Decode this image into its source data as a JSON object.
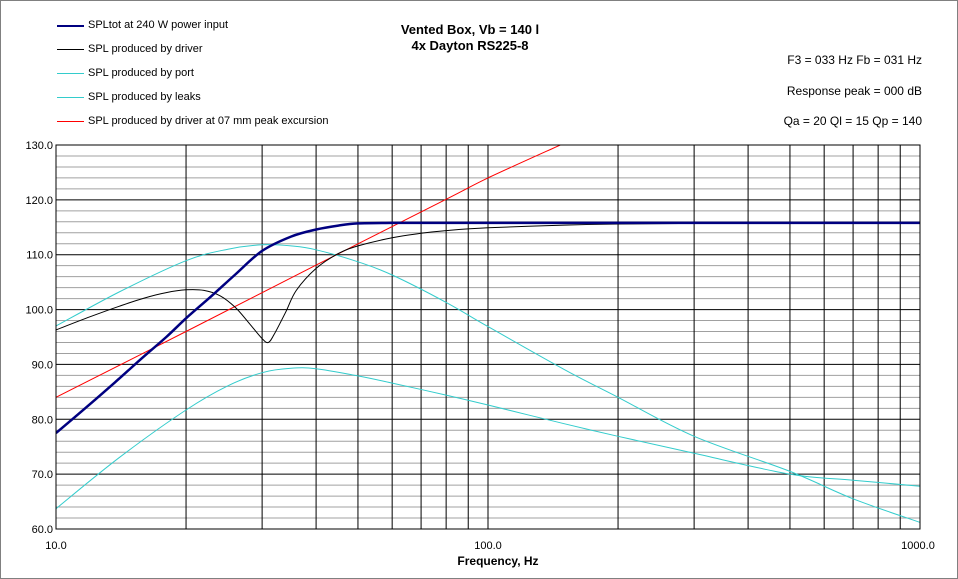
{
  "legend": [
    {
      "label": "SPLtot at 240 W power input",
      "color": "#000080",
      "width": 2.5
    },
    {
      "label": "SPL produced by driver",
      "color": "#000000",
      "width": 1
    },
    {
      "label": "SPL produced by port",
      "color": "#33cccc",
      "width": 1
    },
    {
      "label": "SPL produced by leaks",
      "color": "#33cccc",
      "width": 1
    },
    {
      "label": "SPL produced by driver at 07 mm peak excursion",
      "color": "#ff0000",
      "width": 1
    }
  ],
  "title": {
    "line1": "Vented Box, Vb = 140 l",
    "line2": "4x Dayton RS225-8"
  },
  "info": {
    "f3_fb": "F3 = 033  Hz   Fb = 031  Hz",
    "peak": "Response peak = 000  dB",
    "q": "Qa = 20   Ql = 15   Qp = 140"
  },
  "chart_data": {
    "type": "line",
    "xlabel": "Frequency, Hz",
    "ylabel": "",
    "xscale": "log",
    "xlim": [
      10,
      1000
    ],
    "ylim": [
      60,
      130
    ],
    "x_tick_labels": [
      "10.0",
      "100.0",
      "1000.0"
    ],
    "y_tick_labels": [
      "60.0",
      "70.0",
      "80.0",
      "90.0",
      "100.0",
      "110.0",
      "120.0",
      "130.0"
    ],
    "grid": true,
    "series": [
      {
        "name": "SPLtot at 240 W power input",
        "color": "#000080",
        "x": [
          10,
          12,
          14,
          16,
          18,
          20,
          23,
          26,
          30,
          35,
          40,
          45,
          50,
          60,
          80,
          100,
          200,
          500,
          1000
        ],
        "y": [
          77.5,
          82.8,
          87.4,
          91.5,
          95.0,
          98.4,
          102.6,
          106.4,
          110.7,
          113.3,
          114.6,
          115.3,
          115.7,
          115.8,
          115.8,
          115.8,
          115.8,
          115.8,
          115.8
        ]
      },
      {
        "name": "SPL produced by driver",
        "color": "#000000",
        "x": [
          10,
          12,
          14,
          16,
          18,
          20,
          22,
          24,
          26,
          28,
          30,
          31,
          32,
          34,
          36,
          40,
          45,
          50,
          60,
          70,
          80,
          100,
          150,
          200,
          300,
          500,
          1000
        ],
        "y": [
          96.3,
          98.7,
          100.6,
          102.1,
          103.1,
          103.6,
          103.5,
          102.5,
          100.4,
          97.5,
          94.7,
          94.0,
          95.5,
          99.5,
          103.5,
          107.5,
          110.2,
          111.6,
          113.1,
          113.9,
          114.4,
          114.9,
          115.4,
          115.6,
          115.7,
          115.8,
          115.8
        ]
      },
      {
        "name": "SPL produced by port",
        "color": "#33cccc",
        "x": [
          10,
          14,
          20,
          25,
          30,
          35,
          40,
          50,
          60,
          80,
          100,
          150,
          200,
          300,
          500,
          700,
          1000
        ],
        "y": [
          97.0,
          103.2,
          108.9,
          111.0,
          111.8,
          111.6,
          110.9,
          108.7,
          106.3,
          101.3,
          96.9,
          89.1,
          84.0,
          76.9,
          70.5,
          65.5,
          61.2
        ]
      },
      {
        "name": "SPL produced by leaks",
        "color": "#33cccc",
        "x": [
          10,
          14,
          20,
          25,
          30,
          35,
          40,
          50,
          60,
          80,
          100,
          150,
          200,
          300,
          500,
          700,
          1000
        ],
        "y": [
          63.7,
          73.0,
          81.7,
          86.1,
          88.5,
          89.3,
          89.2,
          87.9,
          86.6,
          84.4,
          82.6,
          79.2,
          76.9,
          73.8,
          70.0,
          68.9,
          67.8
        ]
      },
      {
        "name": "SPL produced by driver at 07 mm peak excursion",
        "color": "#ff0000",
        "x": [
          10,
          20,
          40,
          80,
          100,
          147
        ],
        "y": [
          84.0,
          96.0,
          108.1,
          120.1,
          124.0,
          130.0
        ]
      }
    ]
  }
}
